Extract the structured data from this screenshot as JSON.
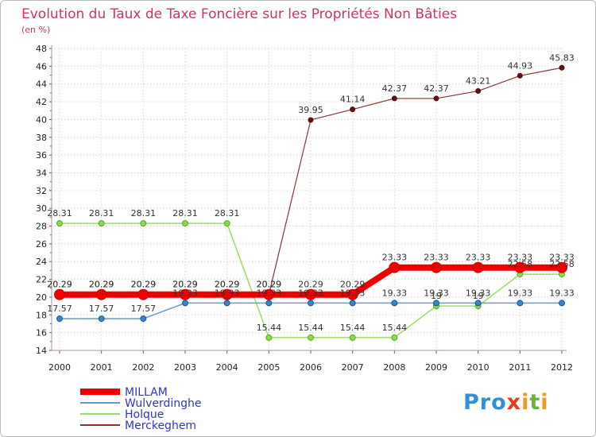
{
  "chart_data": {
    "type": "line",
    "title": "Evolution du Taux de Taxe Foncière sur les Propriétés Non Bâties",
    "subtitle": "(en %)",
    "x": [
      "2000",
      "2001",
      "2002",
      "2003",
      "2004",
      "2005",
      "2006",
      "2007",
      "2008",
      "2009",
      "2010",
      "2011",
      "2012"
    ],
    "ylim": [
      14,
      48
    ],
    "yticks": [
      14,
      16,
      18,
      20,
      22,
      24,
      26,
      28,
      30,
      32,
      34,
      36,
      38,
      40,
      42,
      44,
      46,
      48
    ],
    "ytick_labels": [
      "14",
      "16",
      "18",
      "20",
      "22",
      "24",
      "26",
      "28",
      "30",
      "32",
      "34",
      "36",
      "38",
      "40",
      "42",
      "44",
      "46",
      "48"
    ],
    "grid": true,
    "series": [
      {
        "name": "MILLAM",
        "color": "#ee0000",
        "values": [
          20.29,
          20.29,
          20.29,
          20.29,
          20.29,
          20.29,
          20.29,
          20.29,
          23.33,
          23.33,
          23.33,
          23.33,
          23.33
        ],
        "labels": [
          "20.29",
          "20.29",
          "20.29",
          "20.29",
          "20.29",
          "20.29",
          "20.29",
          "20.29",
          "23.33",
          "23.33",
          "23.33",
          "23.33",
          "23.33"
        ]
      },
      {
        "name": "Wulverdinghe",
        "color": "#6699cc",
        "values": [
          17.57,
          17.57,
          17.57,
          19.33,
          19.33,
          19.33,
          19.33,
          19.33,
          19.33,
          19.33,
          19.33,
          19.33,
          19.33
        ],
        "labels": [
          "17.57",
          "17.57",
          "17.57",
          "19.33",
          "19.33",
          "19.33",
          "19.33",
          "19.33",
          "19.33",
          "19.33",
          "19.33",
          "19.33",
          "19.33"
        ]
      },
      {
        "name": "Holque",
        "color": "#99dd66",
        "values": [
          28.31,
          28.31,
          28.31,
          28.31,
          28.31,
          15.44,
          15.44,
          15.44,
          15.44,
          19.0,
          19.0,
          22.58,
          22.58
        ],
        "labels": [
          "28.31",
          "28.31",
          "28.31",
          "28.31",
          "28.31",
          "15.44",
          "15.44",
          "15.44",
          "15.44",
          "19",
          "19",
          "22.58",
          "22.58"
        ]
      },
      {
        "name": "Merckeghem",
        "color": "#883333",
        "values": [
          20.29,
          20.29,
          20.29,
          20.29,
          20.29,
          20.29,
          39.95,
          41.14,
          42.37,
          42.37,
          43.21,
          44.93,
          45.83
        ],
        "labels": [
          "20.29",
          "20.29",
          "20.29",
          "20.29",
          "20.29",
          "20.29",
          "39.95",
          "41.14",
          "42.37",
          "42.37",
          "43.21",
          "44.93",
          "45.83"
        ]
      }
    ]
  },
  "logo": {
    "p1": "Pro",
    "p2": "x",
    "p3": "i",
    "p4": "t",
    "p5": "i"
  }
}
